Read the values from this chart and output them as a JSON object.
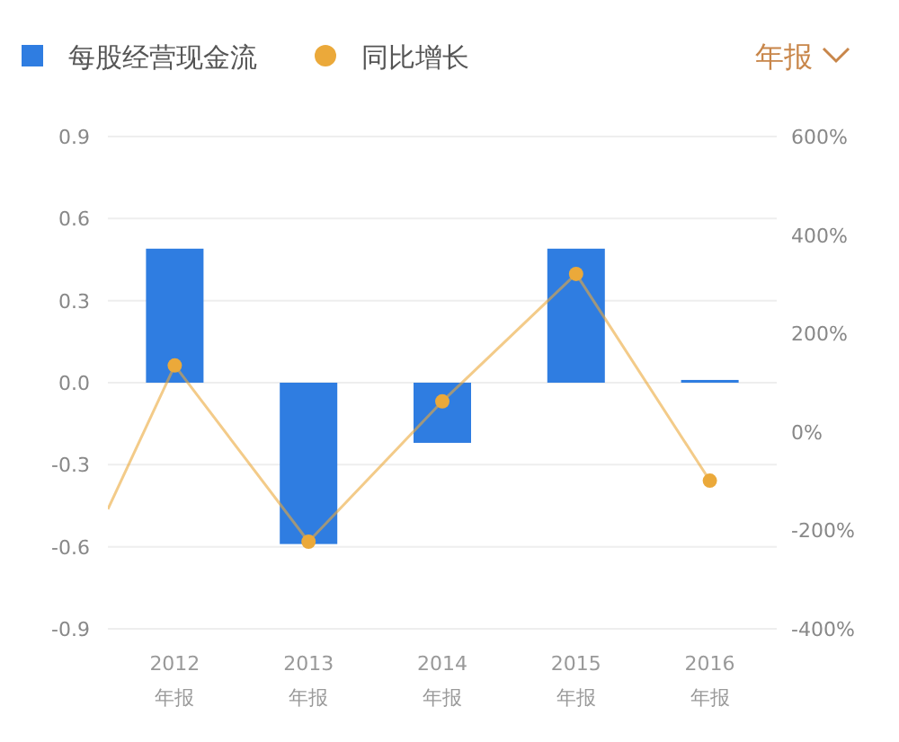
{
  "chart_data": {
    "type": "bar",
    "x": [
      2012,
      2013,
      2014,
      2015,
      2016
    ],
    "series": [
      {
        "name": "每股经营现金流",
        "color": "#2f7de1",
        "values": [
          0.49,
          -0.59,
          -0.22,
          0.49,
          0.01
        ]
      },
      {
        "name": "同比增长",
        "type": "line",
        "axis": "y2",
        "color": "#eba93a",
        "x": [
          2011.5,
          2012,
          2013,
          2014,
          2015,
          2016
        ],
        "values": [
          -157,
          135,
          -223,
          62,
          321,
          -99
        ]
      }
    ],
    "xlim": [
      2011.5,
      2016.5
    ],
    "xticks": [
      {
        "value": 2012,
        "label": "2012\n年报"
      },
      {
        "value": 2013,
        "label": "2013\n年报"
      },
      {
        "value": 2014,
        "label": "2014\n年报"
      },
      {
        "value": 2015,
        "label": "2015\n年报"
      },
      {
        "value": 2016,
        "label": "2016\n年报"
      }
    ],
    "ylim": [
      -0.9,
      0.9
    ],
    "yticks": [
      {
        "value": -0.9,
        "label": "-0.9"
      },
      {
        "value": -0.6,
        "label": "-0.6"
      },
      {
        "value": -0.3,
        "label": "-0.3"
      },
      {
        "value": 0,
        "label": "0.0"
      },
      {
        "value": 0.3,
        "label": "0.3"
      },
      {
        "value": 0.6,
        "label": "0.6"
      },
      {
        "value": 0.9,
        "label": "0.9"
      }
    ],
    "y2lim": [
      -400,
      600
    ],
    "y2ticks": [
      {
        "value": -400,
        "label": "-400%"
      },
      {
        "value": -200,
        "label": "-200%"
      },
      {
        "value": 0,
        "label": "0%"
      },
      {
        "value": 200,
        "label": "200%"
      },
      {
        "value": 400,
        "label": "400%"
      },
      {
        "value": 600,
        "label": "600%"
      }
    ],
    "grid": "y",
    "legend": "top left",
    "marker": "circle",
    "line_style": "solid",
    "annotations": [
      "年报"
    ]
  }
}
